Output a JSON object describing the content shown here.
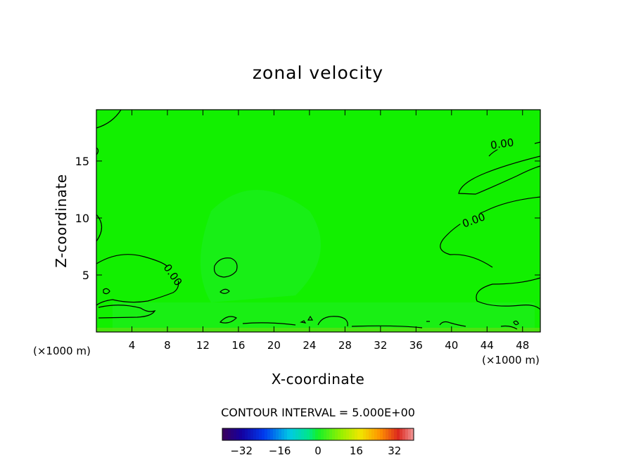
{
  "chart_data": {
    "type": "heatmap",
    "title": "zonal velocity",
    "xlabel": "X-coordinate",
    "ylabel": "Z-coordinate",
    "x_unit": "(×1000 m)",
    "z_unit": "(×1000 m)",
    "xlim": [
      0,
      50
    ],
    "ylim": [
      0,
      19.5
    ],
    "x_ticks": [
      4,
      8,
      12,
      16,
      20,
      24,
      28,
      32,
      36,
      40,
      44,
      48
    ],
    "y_ticks": [
      5,
      10,
      15
    ],
    "contour_labels": [
      {
        "text": "0.00",
        "x": 45.7,
        "z": 16.5
      },
      {
        "text": "0.00",
        "x": 42.5,
        "z": 9.8
      },
      {
        "text": "0.00",
        "x": 8.6,
        "z": 5.0
      }
    ],
    "contour_interval_text": "CONTOUR INTERVAL = 5.000E+00",
    "colorbar": {
      "range": [
        -40,
        40
      ],
      "tick_values": [
        -32,
        -16,
        0,
        16,
        32
      ],
      "tick_labels": [
        "−32",
        "−16",
        "0",
        "16",
        "32"
      ]
    },
    "colors": {
      "field": "#12f000",
      "field_light": "#2aee3a",
      "frame": "#000000"
    }
  }
}
